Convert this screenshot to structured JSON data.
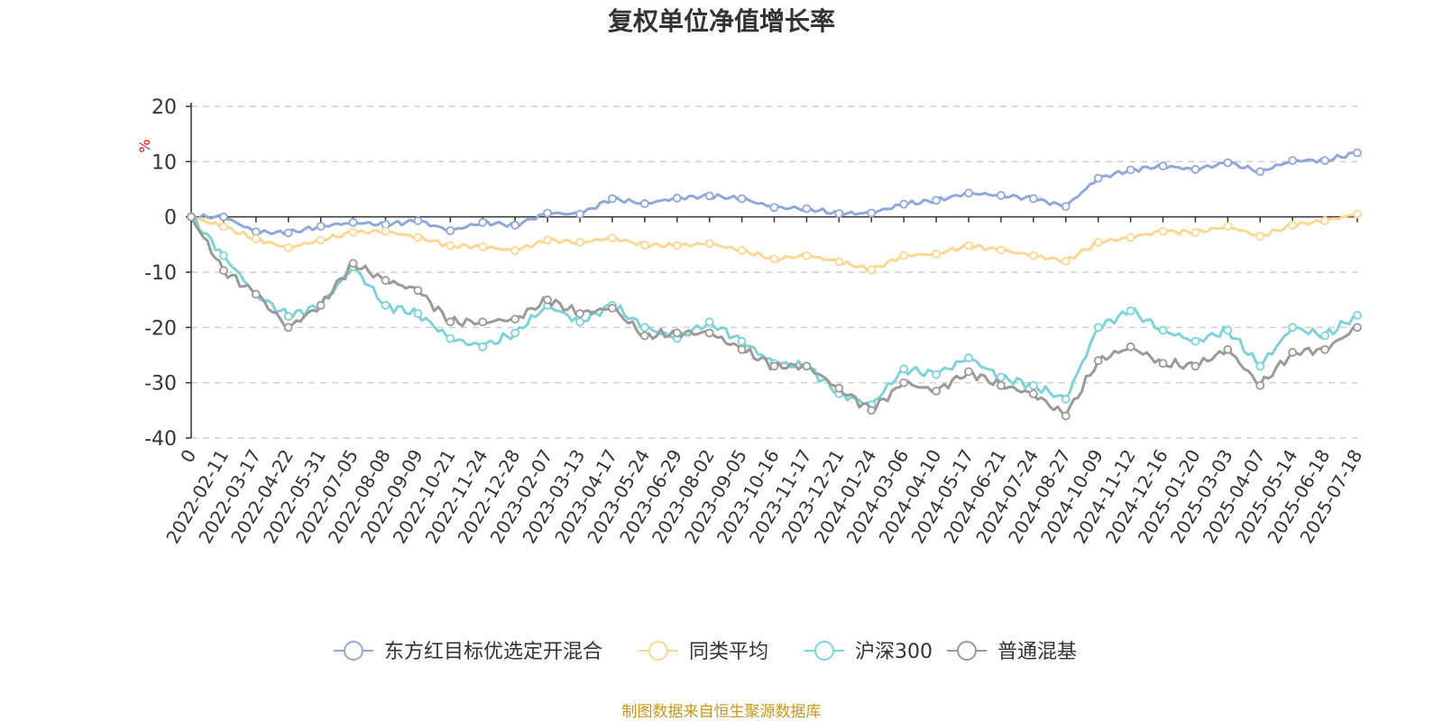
{
  "chart_data": {
    "type": "line",
    "title": "复权单位净值增长率",
    "ylabel": "%",
    "ylim": [
      -40,
      20
    ],
    "yticks": [
      20,
      10,
      0,
      -10,
      -20,
      -30,
      -40
    ],
    "x_categories": [
      "0",
      "2022-02-11",
      "2022-03-17",
      "2022-04-22",
      "2022-05-31",
      "2022-07-05",
      "2022-08-08",
      "2022-09-09",
      "2022-10-21",
      "2022-11-24",
      "2022-12-28",
      "2023-02-07",
      "2023-03-13",
      "2023-04-17",
      "2023-05-24",
      "2023-06-29",
      "2023-08-02",
      "2023-09-05",
      "2023-10-16",
      "2023-11-17",
      "2023-12-21",
      "2024-01-24",
      "2024-03-06",
      "2024-04-10",
      "2024-05-17",
      "2024-06-21",
      "2024-07-24",
      "2024-08-27",
      "2024-10-09",
      "2024-11-12",
      "2024-12-16",
      "2025-01-20",
      "2025-03-03",
      "2025-04-07",
      "2025-05-14",
      "2025-06-18",
      "2025-07-18"
    ],
    "grid": true,
    "legend_position": "bottom",
    "series": [
      {
        "name": "东方红目标优选定开混合",
        "color": "#8fa8d8",
        "values": [
          0,
          0,
          -2.7,
          -2.9,
          -1.7,
          -1.0,
          -1.4,
          -0.7,
          -2.5,
          -1.0,
          -1.5,
          0.7,
          0.5,
          3.3,
          2.4,
          3.4,
          3.8,
          3.3,
          1.7,
          1.5,
          0.6,
          0.7,
          2.3,
          3.0,
          4.3,
          3.9,
          3.3,
          1.9,
          7.0,
          8.5,
          9.2,
          8.6,
          9.8,
          8.2,
          10.2,
          10.2,
          11.6
        ]
      },
      {
        "name": "同类平均",
        "color": "#fad792",
        "values": [
          0,
          -1.8,
          -4.0,
          -5.6,
          -4.2,
          -2.8,
          -2.6,
          -3.7,
          -5.2,
          -5.4,
          -6.1,
          -4.2,
          -4.6,
          -3.8,
          -5.1,
          -5.2,
          -4.8,
          -6.1,
          -7.6,
          -7.0,
          -8.1,
          -9.6,
          -7.0,
          -6.7,
          -5.2,
          -6.0,
          -7.0,
          -8.0,
          -4.6,
          -3.7,
          -2.6,
          -2.8,
          -1.7,
          -3.5,
          -1.5,
          -0.7,
          0.5
        ]
      },
      {
        "name": "沪深300",
        "color": "#7fd2d8",
        "values": [
          0,
          -7.0,
          -14.0,
          -18.0,
          -16.0,
          -9.0,
          -16.0,
          -17.5,
          -22.0,
          -23.5,
          -21.0,
          -16.0,
          -19.0,
          -16.0,
          -20.0,
          -22.0,
          -19.0,
          -22.5,
          -26.5,
          -27.0,
          -32.0,
          -34.0,
          -27.5,
          -28.5,
          -25.5,
          -29.0,
          -30.5,
          -33.0,
          -20.0,
          -17.0,
          -20.5,
          -22.5,
          -20.5,
          -27.0,
          -20.0,
          -21.5,
          -17.8
        ]
      },
      {
        "name": "普通混基",
        "color": "#9a9a9a",
        "values": [
          0,
          -9.7,
          -14.0,
          -20.0,
          -16.0,
          -8.4,
          -11.5,
          -13.3,
          -19.0,
          -19.0,
          -18.5,
          -15.0,
          -17.5,
          -16.5,
          -21.5,
          -21.0,
          -21.0,
          -24.0,
          -27.0,
          -27.0,
          -31.0,
          -35.0,
          -30.0,
          -31.5,
          -28.0,
          -30.5,
          -32.0,
          -36.0,
          -26.0,
          -23.5,
          -26.5,
          -27.0,
          -24.0,
          -30.5,
          -24.5,
          -24.0,
          -20.0
        ]
      }
    ]
  },
  "source": "制图数据来自恒生聚源数据库"
}
